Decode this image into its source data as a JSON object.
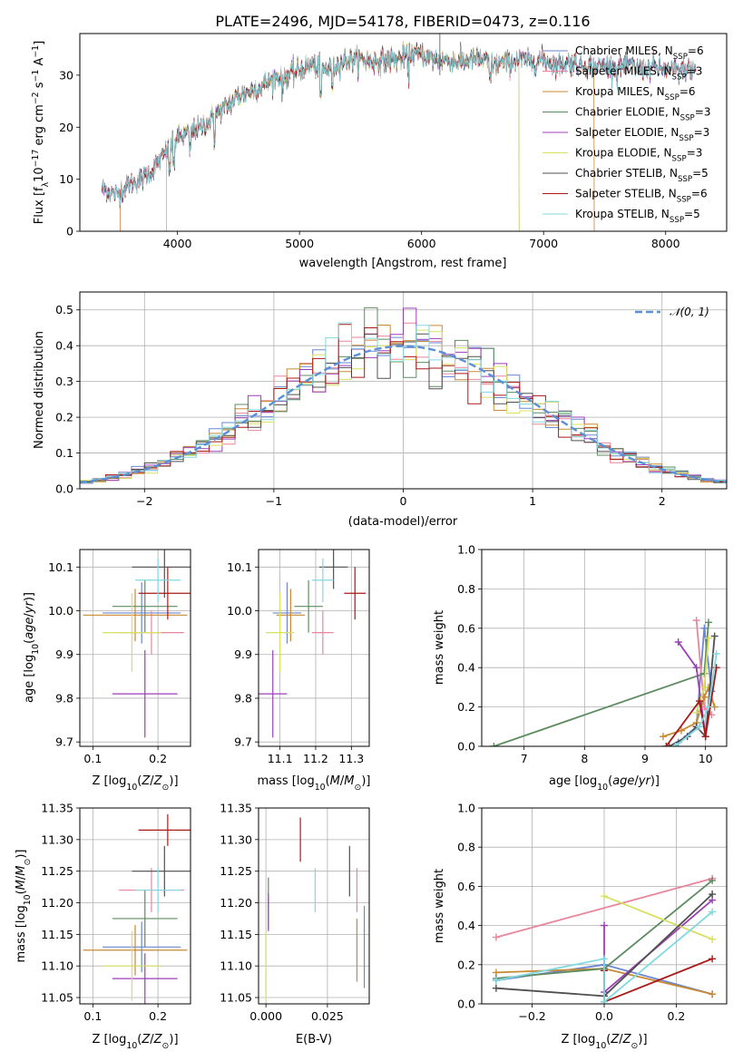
{
  "title": "PLATE=2496, MJD=54178, FIBERID=0473, z=0.116",
  "colors": {
    "Chabrier MILES": "#6b86d2",
    "Salpeter MILES": "#e8869c",
    "Kroupa MILES": "#c88a32",
    "Chabrier ELODIE": "#5e8c60",
    "Salpeter ELODIE": "#9b3fb8",
    "Kroupa ELODIE": "#d8e060",
    "Chabrier STELIB": "#505050",
    "Salpeter STELIB": "#aa1818",
    "Kroupa STELIB": "#80d8e0",
    "gauss": "#5b8fd6",
    "grid": "#b0b0b0"
  },
  "chart_data": [
    {
      "type": "line",
      "id": "spectrum",
      "title": "PLATE=2496, MJD=54178, FIBERID=0473, z=0.116",
      "xlabel": "wavelength [Angstrom, rest frame]",
      "ylabel_parts": [
        "Flux [f",
        "λ",
        "10",
        "−17",
        " erg cm",
        "−2",
        " s",
        "−1",
        " A",
        "−1",
        "]"
      ],
      "xlim": [
        3200,
        8500
      ],
      "ylim": [
        0,
        38
      ],
      "xticks": [
        "4000",
        "5000",
        "6000",
        "7000",
        "8000"
      ],
      "yticks": [
        "0",
        "10",
        "20",
        "30"
      ],
      "grid": false,
      "legend_position": "upper-right",
      "legend": [
        {
          "label": "Chabrier MILES, N",
          "sub": "SSP",
          "tail": "=6"
        },
        {
          "label": "Salpeter MILES, N",
          "sub": "SSP",
          "tail": "=3"
        },
        {
          "label": "Kroupa MILES, N",
          "sub": "SSP",
          "tail": "=6"
        },
        {
          "label": "Chabrier ELODIE, N",
          "sub": "SSP",
          "tail": "=3"
        },
        {
          "label": "Salpeter ELODIE, N",
          "sub": "SSP",
          "tail": "=3"
        },
        {
          "label": "Kroupa ELODIE, N",
          "sub": "SSP",
          "tail": "=3"
        },
        {
          "label": "Chabrier STELIB, N",
          "sub": "SSP",
          "tail": "=5"
        },
        {
          "label": "Salpeter STELIB, N",
          "sub": "SSP",
          "tail": "=6"
        },
        {
          "label": "Kroupa STELIB, N",
          "sub": "SSP",
          "tail": "=5"
        }
      ],
      "continuum_x": [
        3400,
        3500,
        3600,
        3700,
        3800,
        3900,
        4000,
        4100,
        4200,
        4300,
        4400,
        4500,
        4600,
        4700,
        4800,
        4900,
        5000,
        5100,
        5200,
        5300,
        5400,
        5500,
        5600,
        5700,
        5800,
        5900,
        6000,
        6100,
        6200,
        6300,
        6400,
        6500,
        6600,
        6700,
        6800,
        6900,
        7000,
        7100,
        7200,
        7300,
        7400,
        7500,
        7600,
        7700,
        7800,
        7900,
        8000,
        8100,
        8200,
        8250
      ],
      "continuum_y": [
        8,
        7,
        9,
        10,
        12,
        15,
        18,
        19,
        20,
        22,
        24,
        26,
        27,
        28,
        29.5,
        30,
        31,
        32,
        31,
        32,
        33,
        33,
        32.5,
        33,
        33,
        34,
        34,
        33,
        33,
        32.5,
        33,
        33,
        32,
        32.5,
        33,
        32.5,
        33,
        32,
        32.5,
        32,
        31.5,
        32,
        31.5,
        32,
        31,
        31.5,
        31,
        31,
        31,
        31
      ],
      "edges": [
        {
          "model": "Salpeter MILES",
          "x": 3530,
          "y": 8
        },
        {
          "model": "Salpeter MILES",
          "x": 7415,
          "y": 31
        },
        {
          "model": "Kroupa MILES",
          "x": 3530,
          "y": 8
        },
        {
          "model": "Kroupa MILES",
          "x": 7415,
          "y": 31
        },
        {
          "model": "Kroupa ELODIE",
          "x": 3910,
          "y": 16
        },
        {
          "model": "Kroupa ELODIE",
          "x": 6800,
          "y": 32
        },
        {
          "model": "Chabrier ELODIE",
          "x": 3910,
          "y": 16
        },
        {
          "model": "Chabrier ELODIE",
          "x": 6800,
          "y": 32
        }
      ]
    },
    {
      "type": "step",
      "id": "residual-hist",
      "xlabel": "(data-model)/error",
      "ylabel": "Normed distribution",
      "xlim": [
        -2.5,
        2.5
      ],
      "ylim": [
        0,
        0.55
      ],
      "xticks": [
        "−2",
        "−1",
        "0",
        "1",
        "2"
      ],
      "yticks": [
        "0.0",
        "0.1",
        "0.2",
        "0.3",
        "0.4",
        "0.5"
      ],
      "grid": true,
      "legend_position": "upper-right",
      "legend_label": "𝒩(0, 1)",
      "bin_width": 0.1
    },
    {
      "type": "scatter",
      "id": "age-vs-z",
      "xlabel": "Z [log10(Z/Z⊙)]",
      "ylabel": "age  [log10(age/yr)]",
      "xlim": [
        0.08,
        0.25
      ],
      "ylim": [
        9.69,
        10.14
      ],
      "xticks": [
        "0.1",
        "0.2"
      ],
      "yticks": [
        "9.7",
        "9.8",
        "9.9",
        "10.0",
        "10.1"
      ],
      "grid": true,
      "points": [
        {
          "model": "Chabrier MILES",
          "x": 0.175,
          "xerr": 0.06,
          "y": 9.995,
          "yerr": 0.07
        },
        {
          "model": "Salpeter MILES",
          "x": 0.19,
          "xerr": 0.05,
          "y": 9.95,
          "yerr": 0.05
        },
        {
          "model": "Kroupa MILES",
          "x": 0.165,
          "xerr": 0.08,
          "y": 9.99,
          "yerr": 0.06
        },
        {
          "model": "Chabrier ELODIE",
          "x": 0.18,
          "xerr": 0.05,
          "y": 10.01,
          "yerr": 0.06
        },
        {
          "model": "Salpeter ELODIE",
          "x": 0.18,
          "xerr": 0.05,
          "y": 9.81,
          "yerr": 0.1
        },
        {
          "model": "Kroupa ELODIE",
          "x": 0.16,
          "xerr": 0.045,
          "y": 9.95,
          "yerr": 0.09
        },
        {
          "model": "Chabrier STELIB",
          "x": 0.21,
          "xerr": 0.05,
          "y": 10.1,
          "yerr": 0.07
        },
        {
          "model": "Salpeter STELIB",
          "x": 0.215,
          "xerr": 0.045,
          "y": 10.04,
          "yerr": 0.06
        },
        {
          "model": "Kroupa STELIB",
          "x": 0.2,
          "xerr": 0.035,
          "y": 10.07,
          "yerr": 0.05
        }
      ]
    },
    {
      "type": "scatter",
      "id": "age-vs-mass",
      "xlabel": "mass [log10(M/M⊙)]",
      "ylabel": "",
      "xlim": [
        11.04,
        11.35
      ],
      "ylim": [
        9.69,
        10.14
      ],
      "xticks": [
        "11.1",
        "11.2",
        "11.3"
      ],
      "yticks": [
        "9.7",
        "9.8",
        "9.9",
        "10.0",
        "10.1"
      ],
      "grid": true,
      "points": [
        {
          "model": "Chabrier MILES",
          "x": 11.12,
          "xerr": 0.04,
          "y": 9.995,
          "yerr": 0.07
        },
        {
          "model": "Salpeter MILES",
          "x": 11.22,
          "xerr": 0.03,
          "y": 9.95,
          "yerr": 0.05
        },
        {
          "model": "Kroupa MILES",
          "x": 11.13,
          "xerr": 0.04,
          "y": 9.99,
          "yerr": 0.06
        },
        {
          "model": "Chabrier ELODIE",
          "x": 11.18,
          "xerr": 0.04,
          "y": 10.01,
          "yerr": 0.06
        },
        {
          "model": "Salpeter ELODIE",
          "x": 11.08,
          "xerr": 0.04,
          "y": 9.81,
          "yerr": 0.1
        },
        {
          "model": "Kroupa ELODIE",
          "x": 11.1,
          "xerr": 0.04,
          "y": 9.95,
          "yerr": 0.09
        },
        {
          "model": "Chabrier STELIB",
          "x": 11.25,
          "xerr": 0.04,
          "y": 10.1,
          "yerr": 0.05
        },
        {
          "model": "Salpeter STELIB",
          "x": 11.31,
          "xerr": 0.03,
          "y": 10.04,
          "yerr": 0.06
        },
        {
          "model": "Kroupa STELIB",
          "x": 11.22,
          "xerr": 0.03,
          "y": 10.07,
          "yerr": 0.05
        }
      ]
    },
    {
      "type": "line",
      "id": "weight-vs-age",
      "xlabel": "age  [log10(age/yr)]",
      "ylabel": "mass weight",
      "xlim": [
        6.3,
        10.35
      ],
      "ylim": [
        0,
        1
      ],
      "xticks": [
        "7",
        "8",
        "9",
        "10"
      ],
      "yticks": [
        "0.0",
        "0.2",
        "0.4",
        "0.6",
        "0.8",
        "1.0"
      ],
      "grid": true,
      "series": [
        {
          "model": "Chabrier MILES",
          "x": [
            9.55,
            9.85,
            9.98,
            10.1
          ],
          "y": [
            0.02,
            0.1,
            0.6,
            0.28
          ]
        },
        {
          "model": "Salpeter MILES",
          "x": [
            9.85,
            9.98,
            10.1
          ],
          "y": [
            0.64,
            0.2,
            0.16
          ]
        },
        {
          "model": "Kroupa MILES",
          "x": [
            9.3,
            9.6,
            9.85,
            9.98,
            10.05,
            10.15
          ],
          "y": [
            0.05,
            0.08,
            0.12,
            0.25,
            0.3,
            0.2
          ]
        },
        {
          "model": "Chabrier ELODIE",
          "x": [
            6.5,
            9.98,
            10.05
          ],
          "y": [
            0.0,
            0.37,
            0.63
          ]
        },
        {
          "model": "Salpeter ELODIE",
          "x": [
            9.55,
            9.85,
            10.0
          ],
          "y": [
            0.53,
            0.4,
            0.05
          ]
        },
        {
          "model": "Kroupa ELODIE",
          "x": [
            9.85,
            9.98,
            10.05
          ],
          "y": [
            0.17,
            0.3,
            0.55
          ]
        },
        {
          "model": "Chabrier STELIB",
          "x": [
            9.4,
            9.7,
            9.85,
            10.0,
            10.15
          ],
          "y": [
            0.0,
            0.05,
            0.1,
            0.05,
            0.56
          ]
        },
        {
          "model": "Salpeter STELIB",
          "x": [
            9.35,
            9.9,
            10.0,
            10.18
          ],
          "y": [
            0.0,
            0.23,
            0.05,
            0.4
          ]
        },
        {
          "model": "Kroupa STELIB",
          "x": [
            9.5,
            9.9,
            10.05,
            10.18
          ],
          "y": [
            0.0,
            0.1,
            0.2,
            0.47
          ]
        }
      ]
    },
    {
      "type": "scatter",
      "id": "mass-vs-z",
      "xlabel": "Z [log10(Z/Z⊙)]",
      "ylabel": "mass [log10(M/M⊙)]",
      "xlim": [
        0.08,
        0.25
      ],
      "ylim": [
        11.04,
        11.35
      ],
      "xticks": [
        "0.1",
        "0.2"
      ],
      "yticks": [
        "11.05",
        "11.10",
        "11.15",
        "11.20",
        "11.25",
        "11.30",
        "11.35"
      ],
      "grid": true,
      "points": [
        {
          "model": "Chabrier MILES",
          "x": 0.175,
          "xerr": 0.06,
          "y": 11.13,
          "yerr": 0.04
        },
        {
          "model": "Salpeter MILES",
          "x": 0.19,
          "xerr": 0.05,
          "y": 11.22,
          "yerr": 0.035
        },
        {
          "model": "Kroupa MILES",
          "x": 0.165,
          "xerr": 0.08,
          "y": 11.125,
          "yerr": 0.04
        },
        {
          "model": "Chabrier ELODIE",
          "x": 0.18,
          "xerr": 0.05,
          "y": 11.175,
          "yerr": 0.045
        },
        {
          "model": "Salpeter ELODIE",
          "x": 0.18,
          "xerr": 0.05,
          "y": 11.08,
          "yerr": 0.04
        },
        {
          "model": "Kroupa ELODIE",
          "x": 0.16,
          "xerr": 0.045,
          "y": 11.1,
          "yerr": 0.055
        },
        {
          "model": "Chabrier STELIB",
          "x": 0.21,
          "xerr": 0.05,
          "y": 11.25,
          "yerr": 0.04
        },
        {
          "model": "Salpeter STELIB",
          "x": 0.215,
          "xerr": 0.045,
          "y": 11.315,
          "yerr": 0.025
        },
        {
          "model": "Kroupa STELIB",
          "x": 0.2,
          "xerr": 0.035,
          "y": 11.22,
          "yerr": 0.035
        }
      ]
    },
    {
      "type": "scatter",
      "id": "mass-vs-ebv",
      "xlabel": "E(B-V)",
      "ylabel": "",
      "xlim": [
        -0.003,
        0.042
      ],
      "ylim": [
        11.04,
        11.35
      ],
      "xticks": [
        "0.000",
        "0.025"
      ],
      "yticks": [
        "11.05",
        "11.10",
        "11.15",
        "11.20",
        "11.25",
        "11.30",
        "11.35"
      ],
      "grid": true,
      "points": [
        {
          "model": "Chabrier MILES",
          "x": 0.04,
          "xerr": 0,
          "y": 11.13,
          "yerr": 0.065
        },
        {
          "model": "Salpeter MILES",
          "x": 0.037,
          "xerr": 0,
          "y": 11.22,
          "yerr": 0.035
        },
        {
          "model": "Kroupa MILES",
          "x": 0.037,
          "xerr": 0,
          "y": 11.125,
          "yerr": 0.05
        },
        {
          "model": "Chabrier ELODIE",
          "x": 0.001,
          "xerr": 0,
          "y": 11.2,
          "yerr": 0.04
        },
        {
          "model": "Salpeter ELODIE",
          "x": 0.001,
          "xerr": 0,
          "y": 11.185,
          "yerr": 0.03
        },
        {
          "model": "Kroupa ELODIE",
          "x": 0.0,
          "xerr": 0,
          "y": 11.1,
          "yerr": 0.055
        },
        {
          "model": "Chabrier STELIB",
          "x": 0.034,
          "xerr": 0,
          "y": 11.25,
          "yerr": 0.04
        },
        {
          "model": "Salpeter STELIB",
          "x": 0.014,
          "xerr": 0,
          "y": 11.3,
          "yerr": 0.035
        },
        {
          "model": "Kroupa STELIB",
          "x": 0.02,
          "xerr": 0,
          "y": 11.22,
          "yerr": 0.035
        }
      ]
    },
    {
      "type": "line",
      "id": "weight-vs-z",
      "xlabel": "Z [log10(Z/Z⊙)]",
      "ylabel": "mass weight",
      "xlim": [
        -0.34,
        0.34
      ],
      "ylim": [
        0,
        1
      ],
      "xticks": [
        "−0.2",
        "0.0",
        "0.2"
      ],
      "yticks": [
        "0.0",
        "0.2",
        "0.4",
        "0.6",
        "0.8",
        "1.0"
      ],
      "grid": true,
      "series": [
        {
          "model": "Chabrier MILES",
          "x": [
            -0.3,
            0.0,
            0.3
          ],
          "y": [
            0.12,
            0.2,
            0.05
          ]
        },
        {
          "model": "Salpeter MILES",
          "x": [
            -0.3,
            0.3
          ],
          "y": [
            0.34,
            0.64
          ]
        },
        {
          "model": "Kroupa MILES",
          "x": [
            -0.3,
            0.0,
            0.3
          ],
          "y": [
            0.16,
            0.18,
            0.05
          ]
        },
        {
          "model": "Chabrier ELODIE",
          "x": [
            -0.3,
            0.0,
            0.3
          ],
          "y": [
            0.13,
            0.18,
            0.63
          ]
        },
        {
          "model": "Salpeter ELODIE",
          "x": [
            0.0,
            0.0,
            0.3
          ],
          "y": [
            0.4,
            0.06,
            0.53
          ]
        },
        {
          "model": "Kroupa ELODIE",
          "x": [
            0.0,
            0.3
          ],
          "y": [
            0.55,
            0.33
          ]
        },
        {
          "model": "Chabrier STELIB",
          "x": [
            -0.3,
            0.0,
            0.3
          ],
          "y": [
            0.08,
            0.04,
            0.56
          ]
        },
        {
          "model": "Salpeter STELIB",
          "x": [
            0.0,
            0.0,
            0.3
          ],
          "y": [
            0.17,
            0.01,
            0.23
          ]
        },
        {
          "model": "Kroupa STELIB",
          "x": [
            -0.3,
            0.0,
            0.0,
            0.3
          ],
          "y": [
            0.12,
            0.23,
            0.01,
            0.47
          ]
        }
      ]
    }
  ]
}
